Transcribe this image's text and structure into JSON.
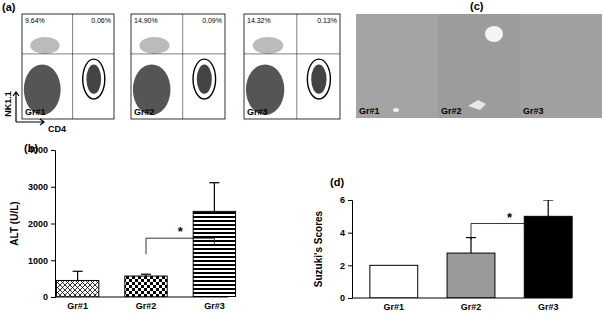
{
  "panel_labels": [
    "(a)",
    "(b)",
    "(c)",
    "(d)"
  ],
  "flow_cytometry": {
    "y_label": "NK1.1",
    "x_label": "CD4",
    "plots": [
      {
        "group": "Gr#1",
        "upper_left": "9.64%",
        "upper_right": "0.06%"
      },
      {
        "group": "Gr#2",
        "upper_left": "14.90%",
        "upper_right": "0.09%"
      },
      {
        "group": "Gr#3",
        "upper_left": "14.32%",
        "upper_right": "0.13%"
      }
    ]
  },
  "histology": {
    "groups": [
      "Gr#1",
      "Gr#2",
      "Gr#3"
    ]
  },
  "chart_data": [
    {
      "type": "bar",
      "y_label": "ALT (U/L)",
      "categories": [
        "Gr#1",
        "Gr#2",
        "Gr#3"
      ],
      "values": [
        450,
        570,
        2330
      ],
      "errors": [
        250,
        50,
        780
      ],
      "color": "#000000",
      "ylim": [
        0,
        4000
      ],
      "yticks": [
        0,
        1000,
        2000,
        3000,
        4000
      ],
      "significance": {
        "text": "*",
        "categories": [
          "Gr#2",
          "Gr#3"
        ]
      }
    },
    {
      "type": "bar",
      "y_label": "Suzuki's Scores",
      "categories": [
        "Gr#1",
        "Gr#2",
        "Gr#3"
      ],
      "values": [
        2,
        2.75,
        5
      ],
      "errors": [
        null,
        0.95,
        1
      ],
      "colors": [
        "#ffffff",
        "#9a9a9a",
        "#000000"
      ],
      "ylim": [
        0,
        6
      ],
      "yticks": [
        0,
        2,
        4,
        6
      ],
      "significance": {
        "text": "*",
        "categories": [
          "Gr#2",
          "Gr#3"
        ]
      }
    }
  ]
}
